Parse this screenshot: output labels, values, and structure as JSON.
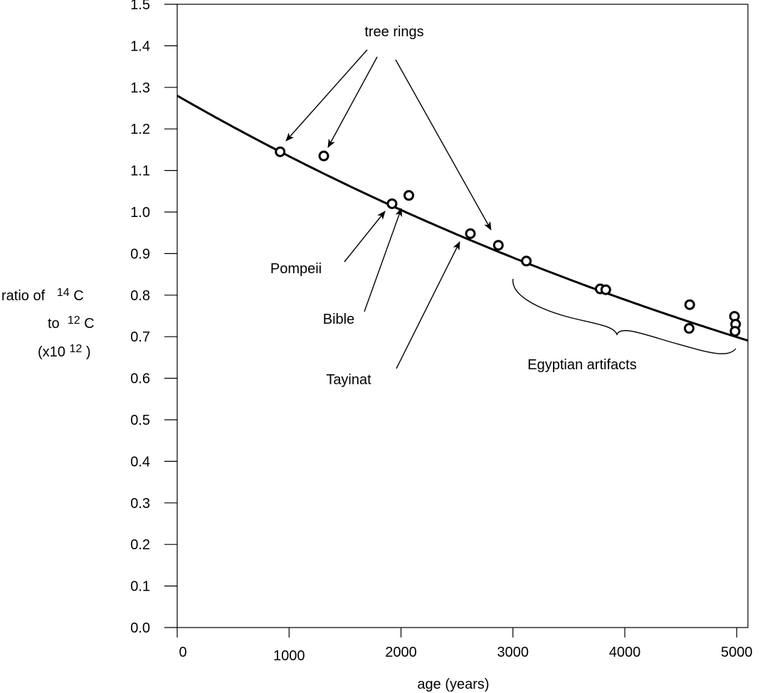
{
  "chart_data": {
    "type": "scatter",
    "title": "",
    "xlabel": "age (years)",
    "ylabel": {
      "line1_prefix": "ratio of",
      "line1_sup": "14",
      "line1_suffix": "C",
      "line2_prefix": "to",
      "line2_sup": "12",
      "line2_suffix": "C",
      "line3_prefix": "(x10",
      "line3_sup": "12",
      "line3_suffix": ")"
    },
    "xlim": [
      0,
      5100
    ],
    "ylim": [
      0.0,
      1.5
    ],
    "x_ticks": [
      0,
      1000,
      2000,
      3000,
      4000,
      5000
    ],
    "x_tick_labels": [
      "0",
      "1000",
      "2000",
      "3000",
      "4000",
      "5000"
    ],
    "y_ticks": [
      0.0,
      0.1,
      0.2,
      0.3,
      0.4,
      0.5,
      0.6,
      0.7,
      0.8,
      0.9,
      1.0,
      1.1,
      1.2,
      1.3,
      1.4,
      1.5
    ],
    "y_tick_labels": [
      "0.0",
      "0.1",
      "0.2",
      "0.3",
      "0.4",
      "0.5",
      "0.6",
      "0.7",
      "0.8",
      "0.9",
      "1.0",
      "1.1",
      "1.2",
      "1.3",
      "1.4",
      "1.5"
    ],
    "grid": false,
    "series": [
      {
        "points": [
          {
            "x": 920,
            "y": 1.145
          },
          {
            "x": 1310,
            "y": 1.135
          },
          {
            "x": 1920,
            "y": 1.02
          },
          {
            "x": 2070,
            "y": 1.04
          },
          {
            "x": 2620,
            "y": 0.948
          },
          {
            "x": 2870,
            "y": 0.92
          },
          {
            "x": 3120,
            "y": 0.882
          },
          {
            "x": 3780,
            "y": 0.815
          },
          {
            "x": 3830,
            "y": 0.813
          },
          {
            "x": 4580,
            "y": 0.777
          },
          {
            "x": 4575,
            "y": 0.72
          },
          {
            "x": 4980,
            "y": 0.749
          },
          {
            "x": 4990,
            "y": 0.73
          },
          {
            "x": 4985,
            "y": 0.713
          }
        ]
      }
    ],
    "fit_curve": {
      "type": "exponential_decay",
      "y0": 1.28,
      "half_life": 5730
    },
    "annotations": {
      "tree_rings": "tree rings",
      "pompeii": "Pompeii",
      "bible": "Bible",
      "tayinat": "Tayinat",
      "egyptian": "Egyptian artifacts"
    }
  }
}
